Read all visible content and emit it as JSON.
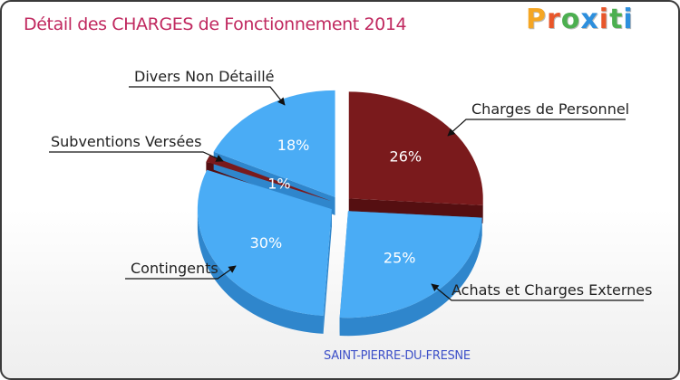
{
  "title": "Détail des CHARGES de Fonctionnement 2014",
  "logo": "Proxiti",
  "footer": "SAINT-PIERRE-DU-FRESNE",
  "colors": {
    "title": "#c0285f",
    "footer": "#3d50c8",
    "blue_top": "#4aacf5",
    "blue_side": "#2f86cc",
    "red_top": "#7a1a1c",
    "red_side": "#550f11",
    "logo_letters": [
      "#f5a623",
      "#e8562a",
      "#4caf50",
      "#2d8fdd",
      "#e8562a",
      "#4caf50",
      "#2d8fdd"
    ]
  },
  "chart_data": {
    "type": "pie",
    "title": "Détail des CHARGES de Fonctionnement 2014",
    "unit": "%",
    "slices": [
      {
        "label": "Charges de Personnel",
        "value": 26,
        "display": "26%",
        "color": "red"
      },
      {
        "label": "Achats et Charges Externes",
        "value": 25,
        "display": "25%",
        "color": "blue"
      },
      {
        "label": "Contingents",
        "value": 30,
        "display": "30%",
        "color": "blue"
      },
      {
        "label": "Subventions Versées",
        "value": 1,
        "display": "1%",
        "color": "red"
      },
      {
        "label": "Divers Non Détaillé",
        "value": 18,
        "display": "18%",
        "color": "blue"
      }
    ]
  }
}
